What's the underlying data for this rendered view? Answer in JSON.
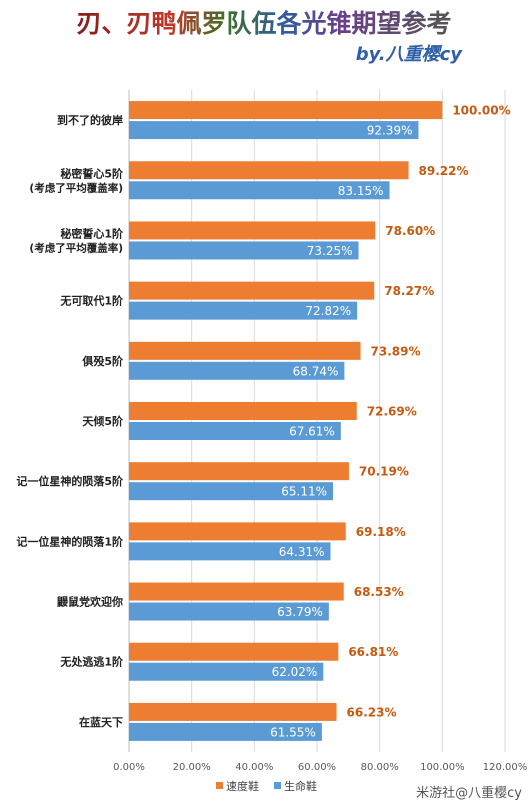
{
  "chart_data": {
    "type": "bar",
    "orientation": "horizontal",
    "title": "刃、刃鸭佩罗队伍各光锥期望参考",
    "subtitle": "by.八重樱cy",
    "categories": [
      "到不了的彼岸",
      "秘密誓心5阶\n(考虑了平均覆盖率)",
      "秘密誓心1阶\n(考虑了平均覆盖率)",
      "无可取代1阶",
      "俱殁5阶",
      "天倾5阶",
      "记一位星神的陨落5阶",
      "记一位星神的陨落1阶",
      "鼹鼠党欢迎你",
      "无处逃逃1阶",
      "在蓝天下"
    ],
    "series": [
      {
        "name": "速度鞋",
        "color": "#ED7D31",
        "values": [
          100.0,
          89.22,
          78.6,
          78.27,
          73.89,
          72.69,
          70.19,
          69.18,
          68.53,
          66.81,
          66.23
        ],
        "labels": [
          "100.00%",
          "89.22%",
          "78.60%",
          "78.27%",
          "73.89%",
          "72.69%",
          "70.19%",
          "69.18%",
          "68.53%",
          "66.81%",
          "66.23%"
        ]
      },
      {
        "name": "生命鞋",
        "color": "#5B9BD5",
        "values": [
          92.39,
          83.15,
          73.25,
          72.82,
          68.74,
          67.61,
          65.11,
          64.31,
          63.79,
          62.02,
          61.55
        ],
        "labels": [
          "92.39%",
          "83.15%",
          "73.25%",
          "72.82%",
          "68.74%",
          "67.61%",
          "65.11%",
          "64.31%",
          "63.79%",
          "62.02%",
          "61.55%"
        ]
      }
    ],
    "xlim": [
      0,
      120
    ],
    "xticks": [
      "0.00%",
      "20.00%",
      "40.00%",
      "60.00%",
      "80.00%",
      "100.00%",
      "120.00%"
    ],
    "grid": true,
    "legend": "bottom"
  },
  "watermark": "米游社@八重樱cy"
}
